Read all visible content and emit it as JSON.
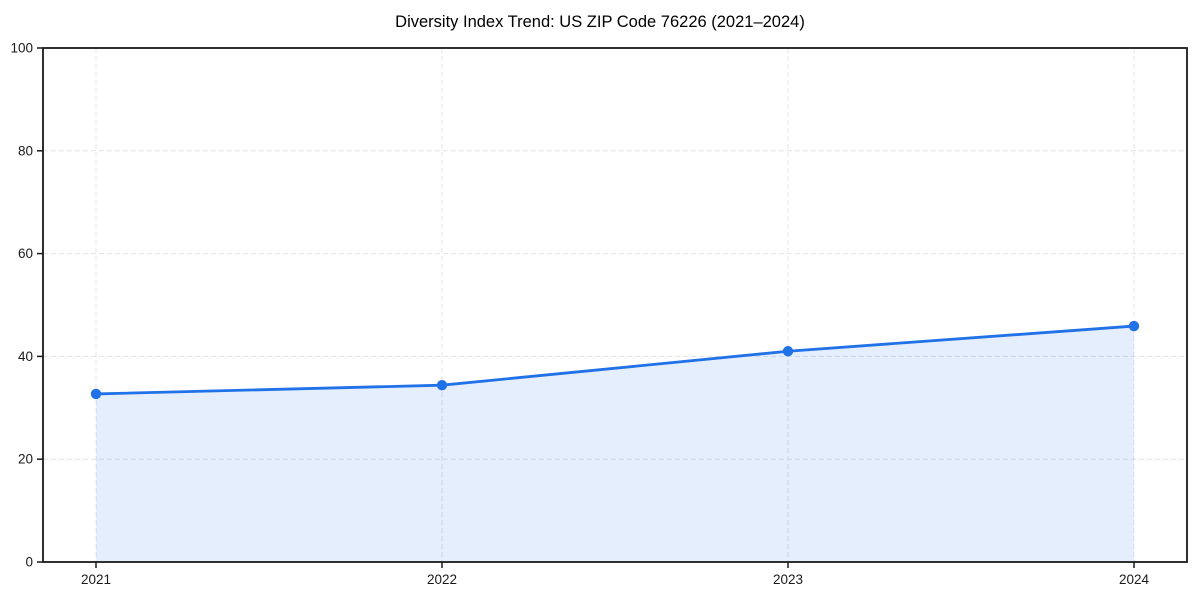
{
  "chart_data": {
    "type": "line",
    "title": "Diversity Index Trend: US ZIP Code 76226 (2021–2024)",
    "x": [
      "2021",
      "2022",
      "2023",
      "2024"
    ],
    "series": [
      {
        "name": "Diversity Index",
        "values": [
          32.7,
          34.4,
          41.0,
          45.9
        ]
      }
    ],
    "xlabel": "",
    "ylabel": "",
    "ylim": [
      0,
      100
    ],
    "yticks": [
      0,
      20,
      40,
      60,
      80,
      100
    ],
    "grid": "dashed, both axes",
    "legend": "none",
    "marker": "circle",
    "area_fill": "under line between first and last points",
    "line_color": "#2172e8",
    "fill_color": "rgba(33,114,232,0.12)",
    "grid_color": "#e4e4e4",
    "spine_color": "#1a1a1a",
    "tick_text_color": "#1a1a1a",
    "background_color": "#ffffff"
  }
}
